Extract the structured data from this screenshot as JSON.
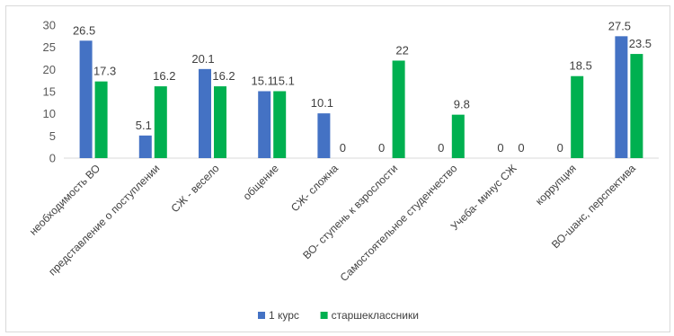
{
  "chart_data": {
    "type": "bar",
    "categories": [
      "необходимость ВО",
      "представление о поступлении",
      "СЖ - весело",
      "общение",
      "СЖ- сложна",
      "ВО- ступень к взрослости",
      "Самостоятельное студенчество",
      "Учеба- минус СЖ",
      "коррупция",
      "ВО-шанс, перспектива"
    ],
    "series": [
      {
        "name": "1 курс",
        "color": "#4472C4",
        "values": [
          26.5,
          5.1,
          20.1,
          15.1,
          10.1,
          0,
          0,
          0,
          0,
          27.5
        ]
      },
      {
        "name": "старшеклассники",
        "color": "#00B050",
        "values": [
          17.3,
          16.2,
          16.2,
          15.1,
          0,
          22,
          9.8,
          0,
          18.5,
          23.5
        ]
      }
    ],
    "ylim": [
      0,
      30
    ],
    "yticks": [
      0,
      5,
      10,
      15,
      20,
      25,
      30
    ],
    "grid": false,
    "legend_position": "bottom",
    "data_labels": true
  }
}
